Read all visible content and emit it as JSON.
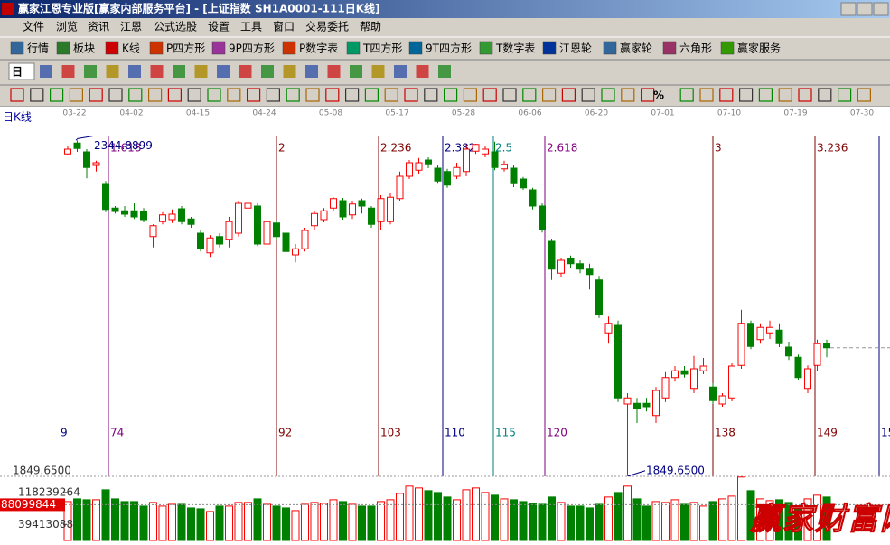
{
  "window": {
    "title": "赢家江恩专业版[赢家内部服务平台] - [上证指数  SH1A0001-111日K线]"
  },
  "menu": [
    "文件",
    "浏览",
    "资讯",
    "江恩",
    "公式选股",
    "设置",
    "工具",
    "窗口",
    "交易委托",
    "帮助"
  ],
  "toolbar": [
    "行情",
    "板块",
    "K线",
    "P四方形",
    "9P四方形",
    "P数字表",
    "T四方形",
    "9T四方形",
    "T数字表",
    "江恩轮",
    "赢家轮",
    "六角形",
    "赢家服务"
  ],
  "toolbar2": {
    "period": "日"
  },
  "toolbar3": {
    "percent": "%"
  },
  "chart_data": {
    "type": "candlestick",
    "title": "日K线",
    "categories": [
      null,
      "03-22",
      null,
      null,
      null,
      null,
      null,
      "04-02",
      null,
      null,
      null,
      null,
      null,
      null,
      "04-15",
      null,
      null,
      null,
      null,
      null,
      null,
      "04-24",
      null,
      null,
      null,
      null,
      null,
      null,
      "05-08",
      null,
      null,
      null,
      null,
      null,
      null,
      "05-17",
      null,
      null,
      null,
      null,
      null,
      null,
      "05-28",
      null,
      null,
      null,
      null,
      null,
      null,
      "06-06",
      null,
      null,
      null,
      null,
      null,
      null,
      "06-20",
      null,
      null,
      null,
      null,
      null,
      null,
      "07-01",
      null,
      null,
      null,
      null,
      null,
      null,
      "07-10",
      null,
      null,
      null,
      null,
      null,
      null,
      "07-19",
      null,
      null,
      null,
      null,
      null,
      null,
      "07-30"
    ],
    "candles": [
      [
        2325,
        2336,
        2323,
        2332
      ],
      [
        2341,
        2344.8899,
        2328,
        2333
      ],
      [
        2328,
        2332,
        2289,
        2305
      ],
      [
        2308,
        2315,
        2299,
        2312
      ],
      [
        2280,
        2285,
        2239,
        2243
      ],
      [
        2245,
        2248,
        2237,
        2240
      ],
      [
        2241,
        2248,
        2232,
        2236
      ],
      [
        2241,
        2252,
        2229,
        2232
      ],
      [
        2240,
        2245,
        2224,
        2228
      ],
      [
        2203,
        2221,
        2187,
        2219
      ],
      [
        2225,
        2239,
        2221,
        2235
      ],
      [
        2228,
        2243,
        2223,
        2236
      ],
      [
        2244,
        2248,
        2221,
        2225
      ],
      [
        2229,
        2232,
        2216,
        2221
      ],
      [
        2208,
        2212,
        2181,
        2185
      ],
      [
        2179,
        2205,
        2173,
        2201
      ],
      [
        2203,
        2208,
        2187,
        2192
      ],
      [
        2199,
        2232,
        2187,
        2225
      ],
      [
        2208,
        2256,
        2203,
        2252
      ],
      [
        2245,
        2256,
        2239,
        2252
      ],
      [
        2248,
        2252,
        2189,
        2192
      ],
      [
        2192,
        2229,
        2187,
        2225
      ],
      [
        2223,
        2227,
        2197,
        2203
      ],
      [
        2208,
        2212,
        2176,
        2181
      ],
      [
        2176,
        2192,
        2165,
        2185
      ],
      [
        2185,
        2216,
        2181,
        2212
      ],
      [
        2219,
        2241,
        2213,
        2237
      ],
      [
        2228,
        2245,
        2224,
        2241
      ],
      [
        2245,
        2261,
        2240,
        2259
      ],
      [
        2256,
        2260,
        2228,
        2232
      ],
      [
        2235,
        2256,
        2229,
        2251
      ],
      [
        2256,
        2259,
        2237,
        2248
      ],
      [
        2245,
        2248,
        2216,
        2221
      ],
      [
        2225,
        2264,
        2213,
        2259
      ],
      [
        2225,
        2267,
        2221,
        2261
      ],
      [
        2259,
        2299,
        2256,
        2292
      ],
      [
        2292,
        2316,
        2288,
        2312
      ],
      [
        2301,
        2319,
        2296,
        2312
      ],
      [
        2316,
        2320,
        2304,
        2309
      ],
      [
        2304,
        2308,
        2281,
        2285
      ],
      [
        2299,
        2303,
        2275,
        2279
      ],
      [
        2292,
        2312,
        2288,
        2305
      ],
      [
        2299,
        2339,
        2292,
        2332
      ],
      [
        2329,
        2340,
        2325,
        2339
      ],
      [
        2325,
        2336,
        2320,
        2332
      ],
      [
        2328,
        2343,
        2301,
        2305
      ],
      [
        2303,
        2315,
        2299,
        2309
      ],
      [
        2304,
        2308,
        2276,
        2281
      ],
      [
        2288,
        2291,
        2272,
        2275
      ],
      [
        2272,
        2275,
        2243,
        2248
      ],
      [
        2248,
        2252,
        2209,
        2213
      ],
      [
        2196,
        2200,
        2139,
        2155
      ],
      [
        2149,
        2172,
        2144,
        2168
      ],
      [
        2171,
        2175,
        2157,
        2163
      ],
      [
        2163,
        2168,
        2149,
        2155
      ],
      [
        2155,
        2163,
        2125,
        2147
      ],
      [
        2139,
        2145,
        2083,
        2088
      ],
      [
        2061,
        2085,
        2045,
        2075
      ],
      [
        2072,
        2079,
        1959,
        1965
      ],
      [
        1956,
        1972,
        1849.65,
        1965
      ],
      [
        1957,
        1965,
        1928,
        1949
      ],
      [
        1957,
        1965,
        1945,
        1952
      ],
      [
        1939,
        1981,
        1928,
        1976
      ],
      [
        1965,
        2003,
        1959,
        1995
      ],
      [
        1995,
        2012,
        1989,
        2005
      ],
      [
        2005,
        2012,
        1995,
        2000
      ],
      [
        1979,
        2027,
        1972,
        2008
      ],
      [
        2005,
        2024,
        2000,
        2012
      ],
      [
        1981,
        1987,
        1956,
        1961
      ],
      [
        1956,
        1972,
        1952,
        1968
      ],
      [
        1965,
        2016,
        1960,
        2012
      ],
      [
        2013,
        2095,
        2008,
        2075
      ],
      [
        2075,
        2079,
        2037,
        2041
      ],
      [
        2051,
        2075,
        2045,
        2069
      ],
      [
        2061,
        2079,
        2052,
        2069
      ],
      [
        2065,
        2075,
        2040,
        2045
      ],
      [
        2040,
        2048,
        2021,
        2027
      ],
      [
        2025,
        2029,
        1992,
        1995
      ],
      [
        1979,
        2013,
        1972,
        2008
      ],
      [
        2013,
        2051,
        2005,
        2045
      ],
      [
        2045,
        2051,
        2025,
        2039
      ],
      null,
      null,
      null,
      null
    ],
    "volumes": [
      95900000,
      102600000,
      100400000,
      100400000,
      124900000,
      102600000,
      95900000,
      95900000,
      84800000,
      93700000,
      84800000,
      89200000,
      89200000,
      80300000,
      78100000,
      71400000,
      84800000,
      84800000,
      93700000,
      93700000,
      102600000,
      89200000,
      84800000,
      80300000,
      73600000,
      89200000,
      93700000,
      91500000,
      100400000,
      95900000,
      89200000,
      84800000,
      84800000,
      95900000,
      100400000,
      116000000,
      133900000,
      129400000,
      122700000,
      118200000,
      107100000,
      100400000,
      124900000,
      129400000,
      118200000,
      111600000,
      102600000,
      100400000,
      95900000,
      91500000,
      89200000,
      107100000,
      93700000,
      84800000,
      84800000,
      80300000,
      89200000,
      107100000,
      118200000,
      133900000,
      102600000,
      84800000,
      95900000,
      93700000,
      100400000,
      89200000,
      93700000,
      84800000,
      95900000,
      102600000,
      109300000,
      156200000,
      122700000,
      102600000,
      98200000,
      100400000,
      93700000,
      84800000,
      102600000,
      111600000,
      107100000,
      null,
      null,
      null,
      null
    ],
    "up_color": "#ff0000",
    "down_color": "#008000",
    "ylim": [
      1840,
      2360
    ],
    "high_label": {
      "value": 2344.8899,
      "label": "2344.8899"
    },
    "low_label": {
      "value": 1849.65,
      "label": "1849.6500"
    },
    "low_axis_label": {
      "value": 1849.65,
      "label": "1849.6500"
    },
    "volume_lim": [
      0,
      158000000
    ],
    "volume_ticks": [
      118239264,
      39413088
    ],
    "volume_cursor": 88099844,
    "gann_lines": [
      {
        "count": "9"
      },
      {
        "ratio": 1.618,
        "count": 74,
        "color": "#800080"
      },
      {
        "ratio": 2,
        "count": 92,
        "color": "#800000"
      },
      {
        "ratio": 2.236,
        "count": 103,
        "color": "#800000"
      },
      {
        "ratio": 2.382,
        "count": 110,
        "color": "#000080"
      },
      {
        "ratio": 2.5,
        "count": 115,
        "color": "#008080"
      },
      {
        "ratio": 2.618,
        "count": 120,
        "color": "#800080"
      },
      {
        "ratio": 3,
        "count": 138,
        "color": "#800000"
      },
      {
        "ratio": 3.236,
        "count": 149,
        "color": "#800000"
      },
      {
        "count": "15",
        "color": "#000080"
      }
    ]
  },
  "watermark": "赢家财富网"
}
